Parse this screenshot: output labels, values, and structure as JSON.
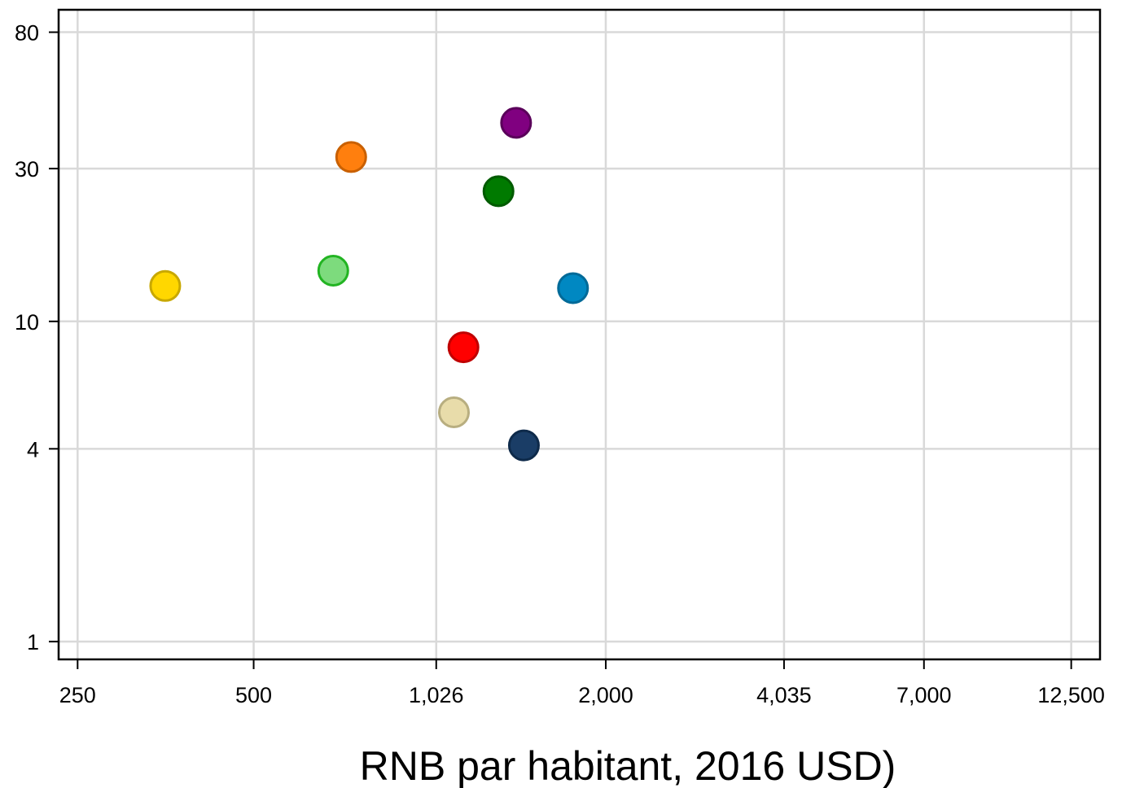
{
  "chart_data": {
    "type": "scatter",
    "title": "",
    "xlabel": "RNB par habitant, 2016 USD)",
    "ylabel": "",
    "x_scale": "log",
    "y_scale": "log",
    "xlim": [
      232,
      14000
    ],
    "ylim": [
      0.88,
      94
    ],
    "x_ticks": [
      250,
      500,
      1026,
      2000,
      4035,
      7000,
      12500
    ],
    "x_tick_labels": [
      "250",
      "500",
      "1,026",
      "2,000",
      "4,035",
      "7,000",
      "12,500"
    ],
    "y_ticks": [
      1,
      4,
      10,
      30,
      80
    ],
    "y_tick_labels": [
      "1",
      "4",
      "10",
      "30",
      "80"
    ],
    "grid": true,
    "legend": "none",
    "points": [
      {
        "x": 353,
        "y": 12.9,
        "color": "#FFD700",
        "stroke": "#C8A800"
      },
      {
        "x": 684,
        "y": 14.4,
        "color": "#7DDB7D",
        "stroke": "#22B422"
      },
      {
        "x": 734,
        "y": 32.6,
        "color": "#FF7F0E",
        "stroke": "#C96000"
      },
      {
        "x": 1100,
        "y": 5.2,
        "color": "#E8DCAA",
        "stroke": "#B8AE80"
      },
      {
        "x": 1142,
        "y": 8.3,
        "color": "#FF0000",
        "stroke": "#C00000"
      },
      {
        "x": 1311,
        "y": 25.5,
        "color": "#007A00",
        "stroke": "#005A00"
      },
      {
        "x": 1405,
        "y": 41.7,
        "color": "#800080",
        "stroke": "#5A005A"
      },
      {
        "x": 1449,
        "y": 4.1,
        "color": "#1A3D66",
        "stroke": "#0E2A4A"
      },
      {
        "x": 1758,
        "y": 12.7,
        "color": "#0088C2",
        "stroke": "#006A98"
      }
    ]
  }
}
